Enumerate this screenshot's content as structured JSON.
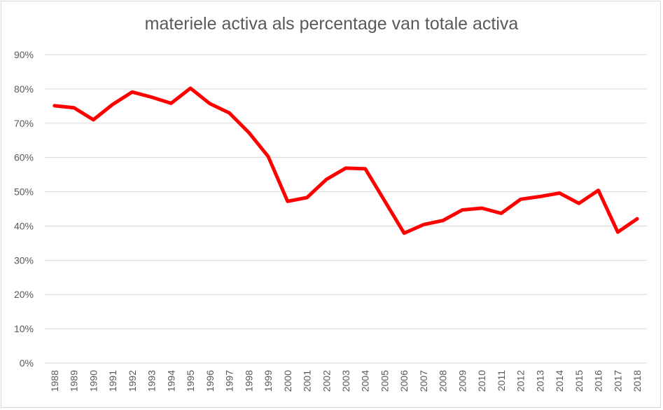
{
  "chart_data": {
    "type": "line",
    "title": "materiele activa als percentage van totale activa",
    "xlabel": "",
    "ylabel": "",
    "categories": [
      "1988",
      "1989",
      "1990",
      "1991",
      "1992",
      "1993",
      "1994",
      "1995",
      "1996",
      "1997",
      "1998",
      "1999",
      "2000",
      "2001",
      "2002",
      "2003",
      "2004",
      "2005",
      "2006",
      "2007",
      "2008",
      "2009",
      "2010",
      "2011",
      "2012",
      "2013",
      "2014",
      "2015",
      "2016",
      "2017",
      "2018"
    ],
    "series": [
      {
        "name": "",
        "color": "#ff0000",
        "values": [
          75.1,
          74.5,
          71.0,
          75.5,
          79.1,
          77.6,
          75.8,
          80.2,
          75.7,
          73.0,
          67.3,
          60.3,
          47.2,
          48.3,
          53.6,
          56.9,
          56.7,
          47.3,
          37.9,
          40.4,
          41.6,
          44.7,
          45.2,
          43.7,
          47.8,
          48.6,
          49.6,
          46.6,
          50.4,
          38.2,
          42.1
        ]
      }
    ],
    "ylim": [
      0,
      90
    ],
    "ytick_step": 10,
    "ytick_format": "percent",
    "grid": true,
    "legend": "none",
    "grid_color": "#d9d9d9",
    "axis_text_color": "#595959"
  }
}
